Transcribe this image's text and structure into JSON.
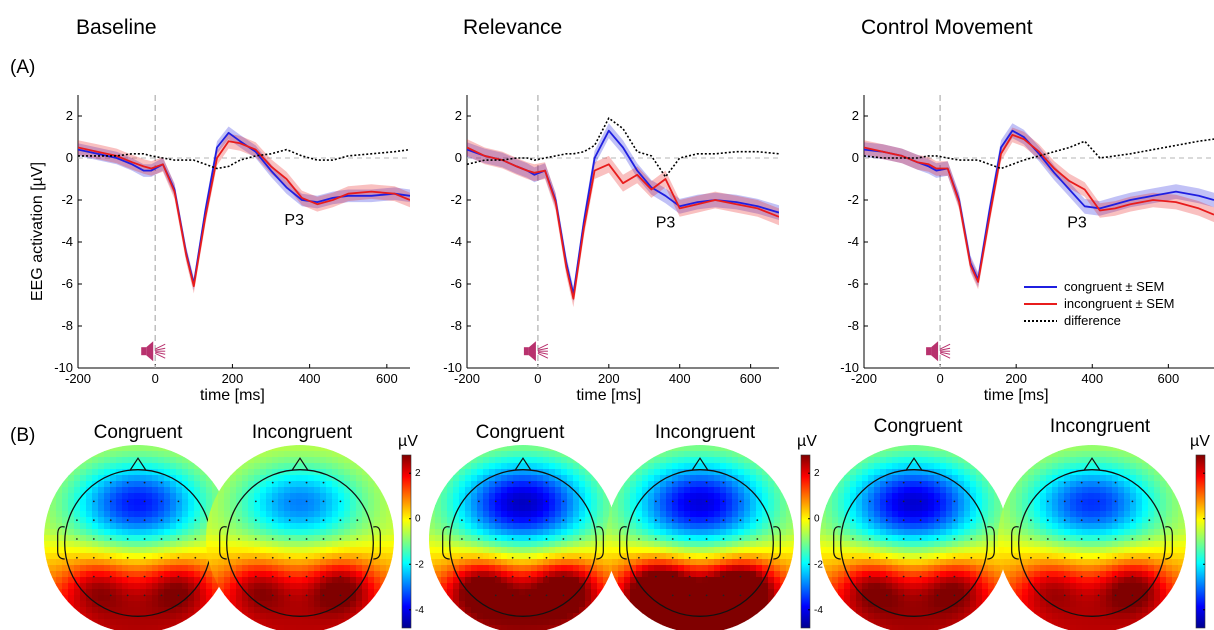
{
  "figure": {
    "panel_label_a": "(A)",
    "panel_label_b": "(B)",
    "conditions": [
      "Baseline",
      "Relevance",
      "Control Movement"
    ],
    "topo_titles": [
      "Congruent",
      "Incongruent"
    ],
    "colorbar_unit": "µV",
    "colorbar_ticks": [
      "2",
      "0",
      "-2",
      "-4"
    ],
    "peak_label": "P3",
    "colors": {
      "congruent": "#1f1fe0",
      "incongruent": "#e81c1c",
      "speaker": "#b8326e"
    }
  },
  "chart_data": [
    {
      "type": "line",
      "title": "Baseline",
      "xlabel": "time [ms]",
      "ylabel": "EEG activation [µV]",
      "xlim": [
        -200,
        660
      ],
      "ylim": [
        -10,
        3
      ],
      "xticks": [
        -200,
        0,
        200,
        400,
        600
      ],
      "yticks": [
        2,
        0,
        -2,
        -4,
        -6,
        -8,
        -10
      ],
      "annotation": {
        "text": "P3",
        "x": 360,
        "y": -3.2
      },
      "series": [
        {
          "name": "congruent ± SEM",
          "sem": 0.3,
          "x": [
            -200,
            -150,
            -100,
            -60,
            -30,
            -10,
            20,
            50,
            80,
            100,
            130,
            160,
            190,
            220,
            260,
            300,
            340,
            380,
            420,
            460,
            500,
            560,
            620,
            660
          ],
          "y": [
            0.4,
            0.2,
            0.0,
            -0.3,
            -0.6,
            -0.6,
            -0.3,
            -1.5,
            -4.5,
            -6.0,
            -2.5,
            0.5,
            1.2,
            0.8,
            0.3,
            -0.6,
            -1.4,
            -2.0,
            -2.1,
            -1.9,
            -1.8,
            -1.8,
            -1.7,
            -1.8
          ]
        },
        {
          "name": "incongruent ± SEM",
          "sem": 0.35,
          "x": [
            -200,
            -150,
            -100,
            -60,
            -30,
            -10,
            20,
            50,
            80,
            100,
            130,
            160,
            190,
            220,
            260,
            300,
            340,
            380,
            420,
            460,
            500,
            560,
            620,
            660
          ],
          "y": [
            0.5,
            0.3,
            0.1,
            -0.2,
            -0.4,
            -0.5,
            -0.3,
            -1.6,
            -4.6,
            -6.1,
            -2.8,
            0.0,
            0.8,
            0.7,
            0.4,
            -0.4,
            -1.0,
            -1.9,
            -2.2,
            -2.0,
            -1.7,
            -1.6,
            -1.7,
            -2.0
          ]
        },
        {
          "name": "difference",
          "x": [
            -200,
            -150,
            -100,
            -60,
            -30,
            -10,
            20,
            50,
            80,
            100,
            130,
            160,
            190,
            220,
            260,
            300,
            340,
            380,
            420,
            460,
            500,
            560,
            620,
            660
          ],
          "y": [
            0.1,
            0.1,
            0.1,
            0.2,
            0.2,
            0.1,
            0.0,
            -0.1,
            -0.1,
            -0.1,
            -0.3,
            -0.5,
            -0.4,
            -0.1,
            0.1,
            0.2,
            0.4,
            0.1,
            -0.1,
            -0.1,
            0.1,
            0.2,
            0.3,
            0.4
          ]
        }
      ]
    },
    {
      "type": "line",
      "title": "Relevance",
      "xlabel": "time [ms]",
      "ylabel": "",
      "xlim": [
        -200,
        680
      ],
      "ylim": [
        -10,
        3
      ],
      "xticks": [
        -200,
        0,
        200,
        400,
        600
      ],
      "yticks": [
        2,
        0,
        -2,
        -4,
        -6,
        -8,
        -10
      ],
      "annotation": {
        "text": "P3",
        "x": 360,
        "y": -3.3
      },
      "series": [
        {
          "name": "congruent ± SEM",
          "sem": 0.35,
          "x": [
            -200,
            -150,
            -100,
            -60,
            -30,
            -10,
            20,
            50,
            80,
            100,
            130,
            160,
            200,
            240,
            280,
            320,
            360,
            400,
            450,
            500,
            560,
            620,
            680
          ],
          "y": [
            0.4,
            0.1,
            -0.1,
            -0.4,
            -0.6,
            -0.8,
            -0.6,
            -2.0,
            -5.0,
            -6.5,
            -3.0,
            0.0,
            1.3,
            0.5,
            -0.6,
            -1.4,
            -1.8,
            -2.3,
            -2.1,
            -2.0,
            -2.1,
            -2.3,
            -2.6
          ]
        },
        {
          "name": "incongruent ± SEM",
          "sem": 0.4,
          "x": [
            -200,
            -150,
            -100,
            -60,
            -30,
            -10,
            20,
            50,
            80,
            100,
            130,
            160,
            200,
            240,
            280,
            320,
            360,
            400,
            450,
            500,
            560,
            620,
            680
          ],
          "y": [
            0.5,
            0.1,
            -0.1,
            -0.4,
            -0.6,
            -0.7,
            -0.6,
            -2.1,
            -5.2,
            -6.7,
            -3.3,
            -0.6,
            -0.3,
            -1.2,
            -0.8,
            -1.5,
            -1.0,
            -2.4,
            -2.2,
            -2.0,
            -2.2,
            -2.4,
            -2.8
          ]
        },
        {
          "name": "difference",
          "x": [
            -200,
            -150,
            -100,
            -60,
            -30,
            -10,
            20,
            50,
            80,
            100,
            130,
            160,
            200,
            240,
            280,
            320,
            360,
            400,
            450,
            500,
            560,
            620,
            680
          ],
          "y": [
            -0.3,
            -0.1,
            -0.1,
            0.0,
            0.0,
            -0.1,
            0.0,
            0.1,
            0.2,
            0.2,
            0.3,
            0.6,
            1.9,
            1.4,
            0.3,
            0.1,
            -0.9,
            0.0,
            0.2,
            0.2,
            0.3,
            0.3,
            0.2
          ]
        }
      ]
    },
    {
      "type": "line",
      "title": "Control Movement",
      "xlabel": "time [ms]",
      "ylabel": "",
      "xlim": [
        -200,
        720
      ],
      "ylim": [
        -10,
        3
      ],
      "xticks": [
        -200,
        0,
        200,
        400,
        600
      ],
      "yticks": [
        2,
        0,
        -2,
        -4,
        -6,
        -8,
        -10
      ],
      "annotation": {
        "text": "P3",
        "x": 360,
        "y": -3.3
      },
      "legend_position": "right",
      "series": [
        {
          "name": "congruent ± SEM",
          "sem": 0.35,
          "x": [
            -200,
            -150,
            -100,
            -60,
            -30,
            -10,
            20,
            50,
            80,
            100,
            130,
            160,
            190,
            220,
            260,
            300,
            340,
            380,
            420,
            460,
            500,
            560,
            620,
            680,
            720
          ],
          "y": [
            0.4,
            0.3,
            0.1,
            -0.2,
            -0.4,
            -0.6,
            -0.5,
            -2.0,
            -5.0,
            -5.8,
            -2.5,
            0.5,
            1.3,
            1.0,
            0.2,
            -0.7,
            -1.5,
            -2.3,
            -2.4,
            -2.2,
            -2.0,
            -1.8,
            -1.6,
            -1.8,
            -2.0
          ]
        },
        {
          "name": "incongruent ± SEM",
          "sem": 0.35,
          "x": [
            -200,
            -150,
            -100,
            -60,
            -30,
            -10,
            20,
            50,
            80,
            100,
            130,
            160,
            190,
            220,
            260,
            300,
            340,
            380,
            420,
            460,
            500,
            560,
            620,
            680,
            720
          ],
          "y": [
            0.5,
            0.3,
            0.1,
            -0.2,
            -0.3,
            -0.5,
            -0.5,
            -2.1,
            -5.1,
            -5.9,
            -2.8,
            0.2,
            1.1,
            0.9,
            0.3,
            -0.5,
            -1.1,
            -1.5,
            -2.5,
            -2.4,
            -2.2,
            -2.0,
            -2.1,
            -2.4,
            -2.7
          ]
        },
        {
          "name": "difference",
          "x": [
            -200,
            -150,
            -100,
            -60,
            -30,
            -10,
            20,
            50,
            80,
            100,
            130,
            160,
            190,
            220,
            260,
            300,
            340,
            380,
            420,
            460,
            500,
            560,
            620,
            680,
            720
          ],
          "y": [
            0.1,
            0.0,
            0.0,
            0.0,
            0.1,
            0.1,
            0.0,
            -0.1,
            -0.1,
            -0.1,
            -0.3,
            -0.5,
            -0.3,
            -0.1,
            0.1,
            0.3,
            0.5,
            0.8,
            0.0,
            0.1,
            0.2,
            0.4,
            0.6,
            0.8,
            0.9
          ]
        }
      ]
    },
    {
      "type": "heatmap",
      "title": "Congruent",
      "condition": "Baseline",
      "colorbar_range": [
        -4.8,
        2.8
      ],
      "frontal": -3.4,
      "frontal_spread": 0.9,
      "posterior_left": 1.2,
      "posterior_right": 1.4,
      "posterior_mid": 1.0
    },
    {
      "type": "heatmap",
      "title": "Incongruent",
      "condition": "Baseline",
      "colorbar_range": [
        -4.8,
        2.8
      ],
      "frontal": -2.6,
      "frontal_spread": 0.8,
      "posterior_left": 1.3,
      "posterior_right": 1.7,
      "posterior_mid": 0.9
    },
    {
      "type": "heatmap",
      "title": "Congruent",
      "condition": "Relevance",
      "colorbar_range": [
        -4.8,
        2.8
      ],
      "frontal": -4.0,
      "frontal_spread": 1.0,
      "posterior_left": 1.9,
      "posterior_right": 2.0,
      "posterior_mid": 1.3
    },
    {
      "type": "heatmap",
      "title": "Incongruent",
      "condition": "Relevance",
      "colorbar_range": [
        -4.8,
        2.8
      ],
      "frontal": -3.8,
      "frontal_spread": 1.0,
      "posterior_left": 2.4,
      "posterior_right": 2.4,
      "posterior_mid": 2.0
    },
    {
      "type": "heatmap",
      "title": "Congruent",
      "condition": "Control Movement",
      "colorbar_range": [
        -4.8,
        2.8
      ],
      "frontal": -3.9,
      "frontal_spread": 1.0,
      "posterior_left": 1.4,
      "posterior_right": 1.4,
      "posterior_mid": 1.1
    },
    {
      "type": "heatmap",
      "title": "Incongruent",
      "condition": "Control Movement",
      "colorbar_range": [
        -4.8,
        2.8
      ],
      "frontal": -3.2,
      "frontal_spread": 0.9,
      "posterior_left": 1.1,
      "posterior_right": 1.7,
      "posterior_mid": 0.9
    }
  ]
}
